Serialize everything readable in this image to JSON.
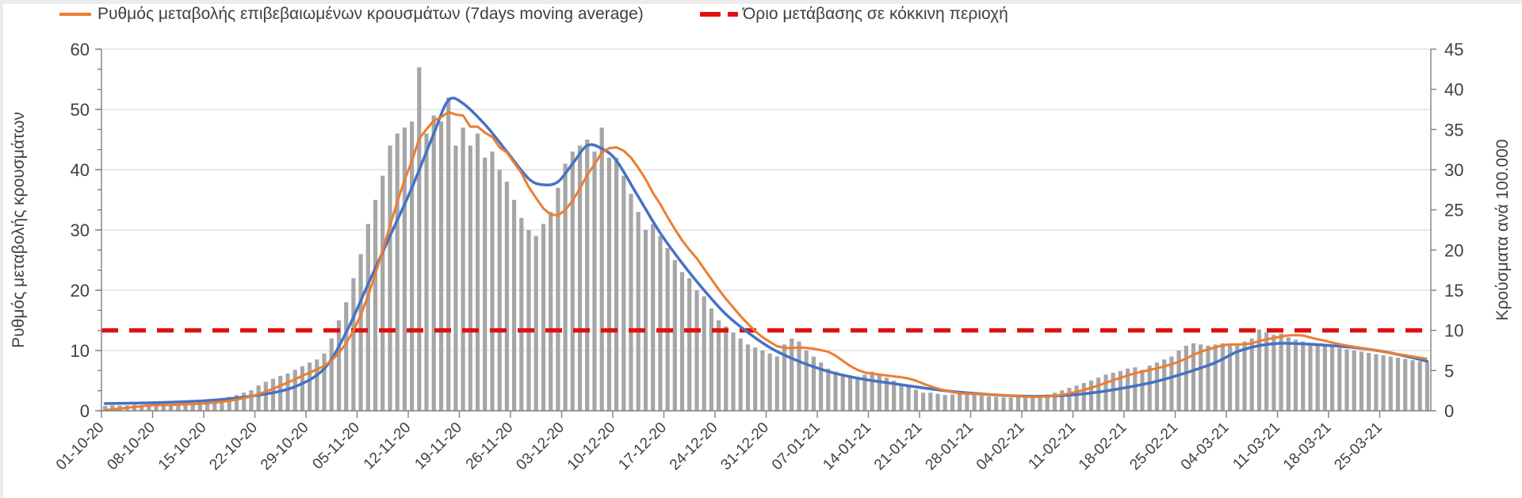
{
  "legend": {
    "ma_label": "Ρυθμός μεταβολής επιβεβαιωμένων κρουσμάτων (7days moving average)",
    "threshold_label": "Όριο μετάβασης σε κόκκινη περιοχή"
  },
  "chart_data": {
    "type": "bar",
    "title": "",
    "left_axis": {
      "label": "Ρυθμός μεταβολής κρουσμάτων",
      "min": 0,
      "max": 60,
      "ticks": [
        0,
        10,
        20,
        30,
        40,
        50,
        60
      ]
    },
    "right_axis": {
      "label": "Κρούσματα ανά 100.000",
      "min": 0,
      "max": 45,
      "ticks": [
        0,
        5,
        10,
        15,
        20,
        25,
        30,
        35,
        40,
        45
      ]
    },
    "x_ticks": [
      "01-10-20",
      "08-10-20",
      "15-10-20",
      "22-10-20",
      "29-10-20",
      "05-11-20",
      "12-11-20",
      "19-11-20",
      "26-11-20",
      "03-12-20",
      "10-12-20",
      "17-12-20",
      "24-12-20",
      "31-12-20",
      "07-01-21",
      "14-01-21",
      "21-01-21",
      "28-01-21",
      "04-02-21",
      "11-02-21",
      "18-02-21",
      "25-02-21",
      "04-03-21",
      "11-03-21",
      "18-03-21",
      "25-03-21"
    ],
    "start_date": "01-10-20",
    "bar_series_name": "daily-rate-of-change",
    "bars": [
      0.8,
      0.9,
      0.85,
      0.9,
      1.0,
      0.9,
      0.95,
      1.0,
      1.1,
      1.0,
      1.2,
      1.3,
      1.2,
      1.4,
      1.6,
      1.8,
      2.0,
      2.3,
      2.6,
      3.0,
      3.4,
      4.2,
      4.8,
      5.3,
      5.8,
      6.2,
      6.8,
      7.4,
      8.0,
      8.5,
      9.5,
      12,
      15,
      18,
      22,
      26,
      31,
      35,
      39,
      44,
      46,
      47,
      48,
      57,
      46,
      49,
      48,
      52,
      44,
      47,
      44,
      46,
      42,
      43,
      40,
      38,
      35,
      32,
      30,
      29,
      31,
      33,
      37,
      41,
      43,
      44,
      45,
      43,
      47,
      42,
      42,
      39,
      36,
      33,
      30,
      31,
      29,
      27,
      25,
      23,
      22,
      20,
      19,
      17,
      15,
      14,
      13,
      12,
      11,
      10.5,
      10,
      9.5,
      9,
      11,
      12,
      11.5,
      10,
      9,
      8,
      7,
      6.5,
      6,
      5.5,
      5.5,
      6,
      6.5,
      6,
      5.5,
      5,
      4.5,
      4,
      3.5,
      3,
      3,
      2.8,
      2.6,
      2.7,
      2.8,
      3,
      2.8,
      2.6,
      2.4,
      2.3,
      2.2,
      2.2,
      2.3,
      2.3,
      2.4,
      2.5,
      2.7,
      3.0,
      3.4,
      3.8,
      4.2,
      4.6,
      5.0,
      5.5,
      6.0,
      6.3,
      6.6,
      7.0,
      7.2,
      6.8,
      7.5,
      8.0,
      8.5,
      9.0,
      10.0,
      10.8,
      11.2,
      11.0,
      10.8,
      11.0,
      11.2,
      11.0,
      10.8,
      11.5,
      12.0,
      13.5,
      13.0,
      12.6,
      12.8,
      12.2,
      11.8,
      11.5,
      11.2,
      11.0,
      10.8,
      10.6,
      10.4,
      10.2,
      10.0,
      9.8,
      9.6,
      9.4,
      9.2,
      9.0,
      8.8,
      8.6,
      8.4,
      8.2,
      8.0
    ],
    "ma_window_days": 7,
    "trend_series_name": "cases-per-100000-trend",
    "trend_points": [
      [
        0,
        1.2
      ],
      [
        7,
        1.35
      ],
      [
        14,
        1.7
      ],
      [
        21,
        2.6
      ],
      [
        26,
        4
      ],
      [
        30,
        7
      ],
      [
        33,
        13
      ],
      [
        36,
        21
      ],
      [
        39,
        29
      ],
      [
        42,
        37
      ],
      [
        45,
        46
      ],
      [
        47,
        51.5
      ],
      [
        49,
        51
      ],
      [
        52,
        47.5
      ],
      [
        55,
        43
      ],
      [
        58,
        38.5
      ],
      [
        60,
        37.5
      ],
      [
        62,
        38
      ],
      [
        64,
        41
      ],
      [
        66,
        44
      ],
      [
        68,
        43.5
      ],
      [
        70,
        41.5
      ],
      [
        73,
        35.5
      ],
      [
        76,
        29.5
      ],
      [
        79,
        24.5
      ],
      [
        82,
        20
      ],
      [
        85,
        16
      ],
      [
        88,
        13
      ],
      [
        91,
        10.5
      ],
      [
        94,
        8.7
      ],
      [
        97,
        7.3
      ],
      [
        100,
        6.2
      ],
      [
        104,
        5.2
      ],
      [
        108,
        4.5
      ],
      [
        112,
        3.8
      ],
      [
        116,
        3.2
      ],
      [
        120,
        2.8
      ],
      [
        124,
        2.5
      ],
      [
        128,
        2.4
      ],
      [
        132,
        2.6
      ],
      [
        136,
        3.1
      ],
      [
        140,
        3.9
      ],
      [
        144,
        4.9
      ],
      [
        148,
        6.3
      ],
      [
        152,
        8
      ],
      [
        155,
        9.8
      ],
      [
        158,
        10.8
      ],
      [
        161,
        11.2
      ],
      [
        164,
        11.1
      ],
      [
        167,
        10.9
      ],
      [
        170,
        10.6
      ],
      [
        173,
        10.2
      ],
      [
        176,
        9.6
      ],
      [
        179,
        8.8
      ],
      [
        181,
        8.2
      ]
    ],
    "threshold": {
      "value_right_axis": 10,
      "label": "Όριο μετάβασης σε κόκκινη περιοχή"
    },
    "grid": "horizontal, every 10 left-axis units",
    "legend_position": "top",
    "colors": {
      "bar": "#a6a6a6",
      "ma_line": "#ED7D31",
      "trend_line": "#4472C4",
      "threshold_line": "#e01010",
      "grid_line": "#d9d9d9",
      "axis_line": "#808080",
      "text": "#404040"
    }
  }
}
